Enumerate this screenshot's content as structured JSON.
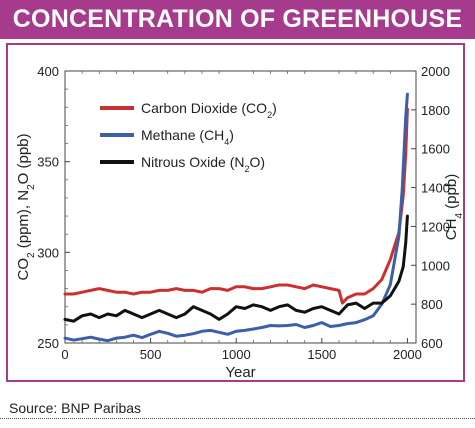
{
  "header": {
    "title": "CONCENTRATION OF GREENHOUSE GASES"
  },
  "footer": {
    "source": "Source: BNP Paribas"
  },
  "chart_data": {
    "type": "line",
    "xlabel": "Year",
    "ylabel_left": [
      "CO",
      "2",
      " (ppm), N",
      "2",
      "O (ppb)"
    ],
    "ylabel_right": [
      "CH",
      "4",
      " (ppb)"
    ],
    "xlim": [
      0,
      2050
    ],
    "ylim_left": [
      250,
      400
    ],
    "ylim_right": [
      600,
      2000
    ],
    "xticks": [
      0,
      500,
      1000,
      1500,
      2000
    ],
    "yticks_left": [
      250,
      300,
      350,
      400
    ],
    "yticks_right": [
      600,
      800,
      1000,
      1200,
      1400,
      1600,
      1800,
      2000
    ],
    "legend_position": "top-left",
    "series": [
      {
        "name": "Carbon Dioxide (CO2)",
        "label_parts": [
          "Carbon Dioxide (CO",
          "2",
          ")"
        ],
        "color": "#cc2f2f",
        "axis": "left",
        "x": [
          0,
          50,
          100,
          150,
          200,
          250,
          300,
          350,
          400,
          450,
          500,
          550,
          600,
          650,
          700,
          750,
          800,
          850,
          900,
          950,
          1000,
          1050,
          1100,
          1150,
          1200,
          1250,
          1300,
          1350,
          1400,
          1450,
          1500,
          1550,
          1600,
          1620,
          1650,
          1700,
          1750,
          1800,
          1850,
          1900,
          1950,
          1975,
          1990,
          2000
        ],
        "y": [
          277,
          277,
          278,
          279,
          280,
          279,
          278,
          278,
          277,
          278,
          278,
          279,
          279,
          280,
          279,
          279,
          278,
          280,
          280,
          279,
          281,
          281,
          280,
          280,
          281,
          282,
          282,
          281,
          280,
          282,
          281,
          280,
          279,
          272,
          275,
          277,
          277,
          280,
          285,
          296,
          311,
          331,
          354,
          379
        ]
      },
      {
        "name": "Methane (CH4)",
        "label_parts": [
          "Methane (CH",
          "4",
          ")"
        ],
        "color": "#3c5fa8",
        "axis": "right",
        "x": [
          0,
          50,
          100,
          150,
          200,
          250,
          300,
          350,
          400,
          450,
          500,
          550,
          600,
          650,
          700,
          750,
          800,
          850,
          900,
          950,
          1000,
          1050,
          1100,
          1150,
          1200,
          1250,
          1300,
          1350,
          1400,
          1450,
          1500,
          1550,
          1600,
          1650,
          1700,
          1750,
          1800,
          1850,
          1900,
          1950,
          1970,
          1980,
          1990,
          2000
        ],
        "y": [
          625,
          615,
          622,
          630,
          620,
          612,
          625,
          630,
          640,
          628,
          645,
          660,
          650,
          635,
          640,
          648,
          660,
          665,
          655,
          645,
          660,
          665,
          672,
          680,
          690,
          688,
          690,
          695,
          680,
          690,
          705,
          685,
          690,
          700,
          705,
          720,
          740,
          800,
          900,
          1150,
          1400,
          1580,
          1760,
          1880
        ]
      },
      {
        "name": "Nitrous Oxide (N2O)",
        "label_parts": [
          "Nitrous Oxide (N",
          "2",
          "O)"
        ],
        "color": "#111111",
        "axis": "left",
        "x": [
          0,
          50,
          100,
          150,
          200,
          250,
          300,
          350,
          400,
          450,
          500,
          550,
          600,
          650,
          700,
          750,
          800,
          850,
          900,
          950,
          1000,
          1050,
          1100,
          1150,
          1200,
          1250,
          1300,
          1350,
          1400,
          1450,
          1500,
          1550,
          1600,
          1650,
          1700,
          1750,
          1800,
          1850,
          1900,
          1950,
          1975,
          1990,
          2000
        ],
        "y": [
          263,
          262,
          265,
          266,
          264,
          266,
          265,
          268,
          266,
          264,
          266,
          268,
          266,
          264,
          266,
          270,
          268,
          266,
          263,
          266,
          270,
          269,
          271,
          270,
          268,
          270,
          271,
          268,
          267,
          269,
          270,
          268,
          266,
          271,
          272,
          269,
          272,
          272,
          276,
          284,
          292,
          305,
          320
        ]
      }
    ]
  }
}
